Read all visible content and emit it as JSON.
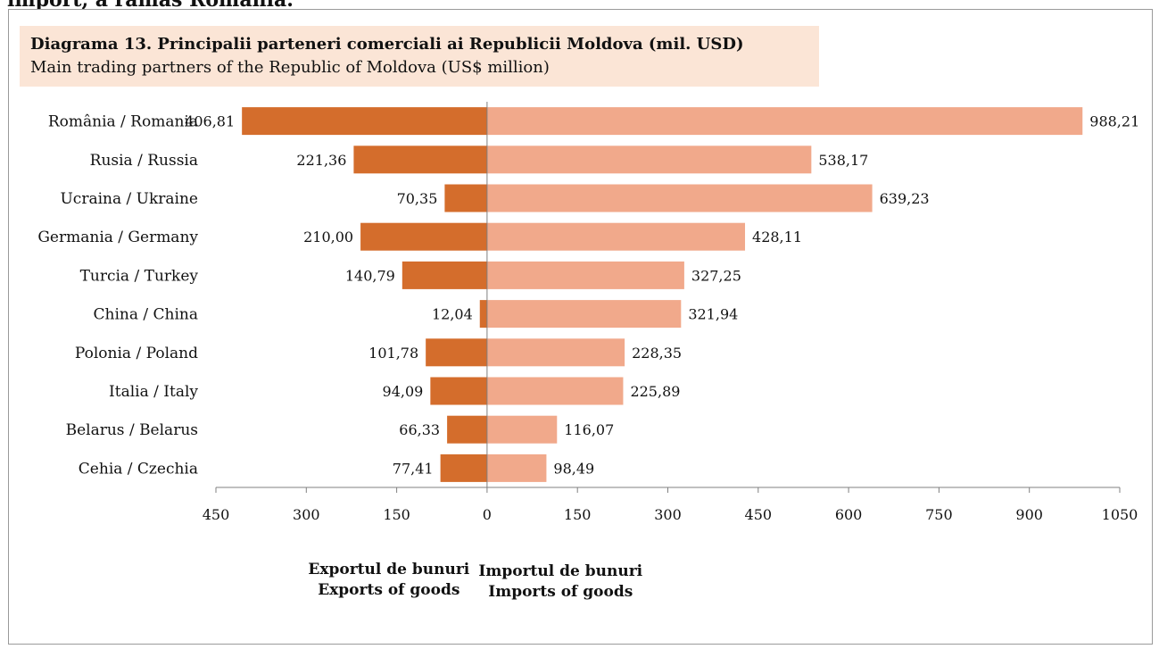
{
  "page": {
    "clipped_heading": "import, a rămas România."
  },
  "chart_data": {
    "type": "bar",
    "title": "Diagrama 13. Principalii parteneri comerciali ai Republicii Moldova (mil. USD)",
    "subtitle": "Main trading partners of the Republic of Moldova (US$ million)",
    "categories": [
      "România / Romania",
      "Rusia / Russia",
      "Ucraina / Ukraine",
      "Germania / Germany",
      "Turcia / Turkey",
      "China / China",
      "Polonia / Poland",
      "Italia / Italy",
      "Belarus / Belarus",
      "Cehia / Czechia"
    ],
    "series": [
      {
        "name": "Exportul de bunuri / Exports of goods",
        "color": "#d46d2c",
        "values": [
          406.81,
          221.36,
          70.35,
          210.0,
          140.79,
          12.04,
          101.78,
          94.09,
          66.33,
          77.41
        ],
        "value_labels": [
          "406,81",
          "221,36",
          "70,35",
          "210,00",
          "140,79",
          "12,04",
          "101,78",
          "94,09",
          "66,33",
          "77,41"
        ]
      },
      {
        "name": "Importul de bunuri / Imports of goods",
        "color": "#f1a98b",
        "values": [
          988.21,
          538.17,
          639.23,
          428.11,
          327.25,
          321.94,
          228.35,
          225.89,
          116.07,
          98.49
        ],
        "value_labels": [
          "988,21",
          "538,17",
          "639,23",
          "428,11",
          "327,25",
          "321,94",
          "228,35",
          "225,89",
          "116,07",
          "98,49"
        ]
      }
    ],
    "xlim": [
      -450,
      1050
    ],
    "x_ticks": [
      {
        "value": -450,
        "label": "450"
      },
      {
        "value": -300,
        "label": "300"
      },
      {
        "value": -150,
        "label": "150"
      },
      {
        "value": 0,
        "label": "0"
      },
      {
        "value": 150,
        "label": "150"
      },
      {
        "value": 300,
        "label": "300"
      },
      {
        "value": 450,
        "label": "450"
      },
      {
        "value": 600,
        "label": "600"
      },
      {
        "value": 750,
        "label": "750"
      },
      {
        "value": 900,
        "label": "900"
      },
      {
        "value": 1050,
        "label": "1050"
      }
    ],
    "left_caption": [
      "Exportul de bunuri",
      "Exports of goods"
    ],
    "right_caption": [
      "Importul de bunuri",
      "Imports of goods"
    ],
    "grid": false,
    "legend": "none"
  }
}
